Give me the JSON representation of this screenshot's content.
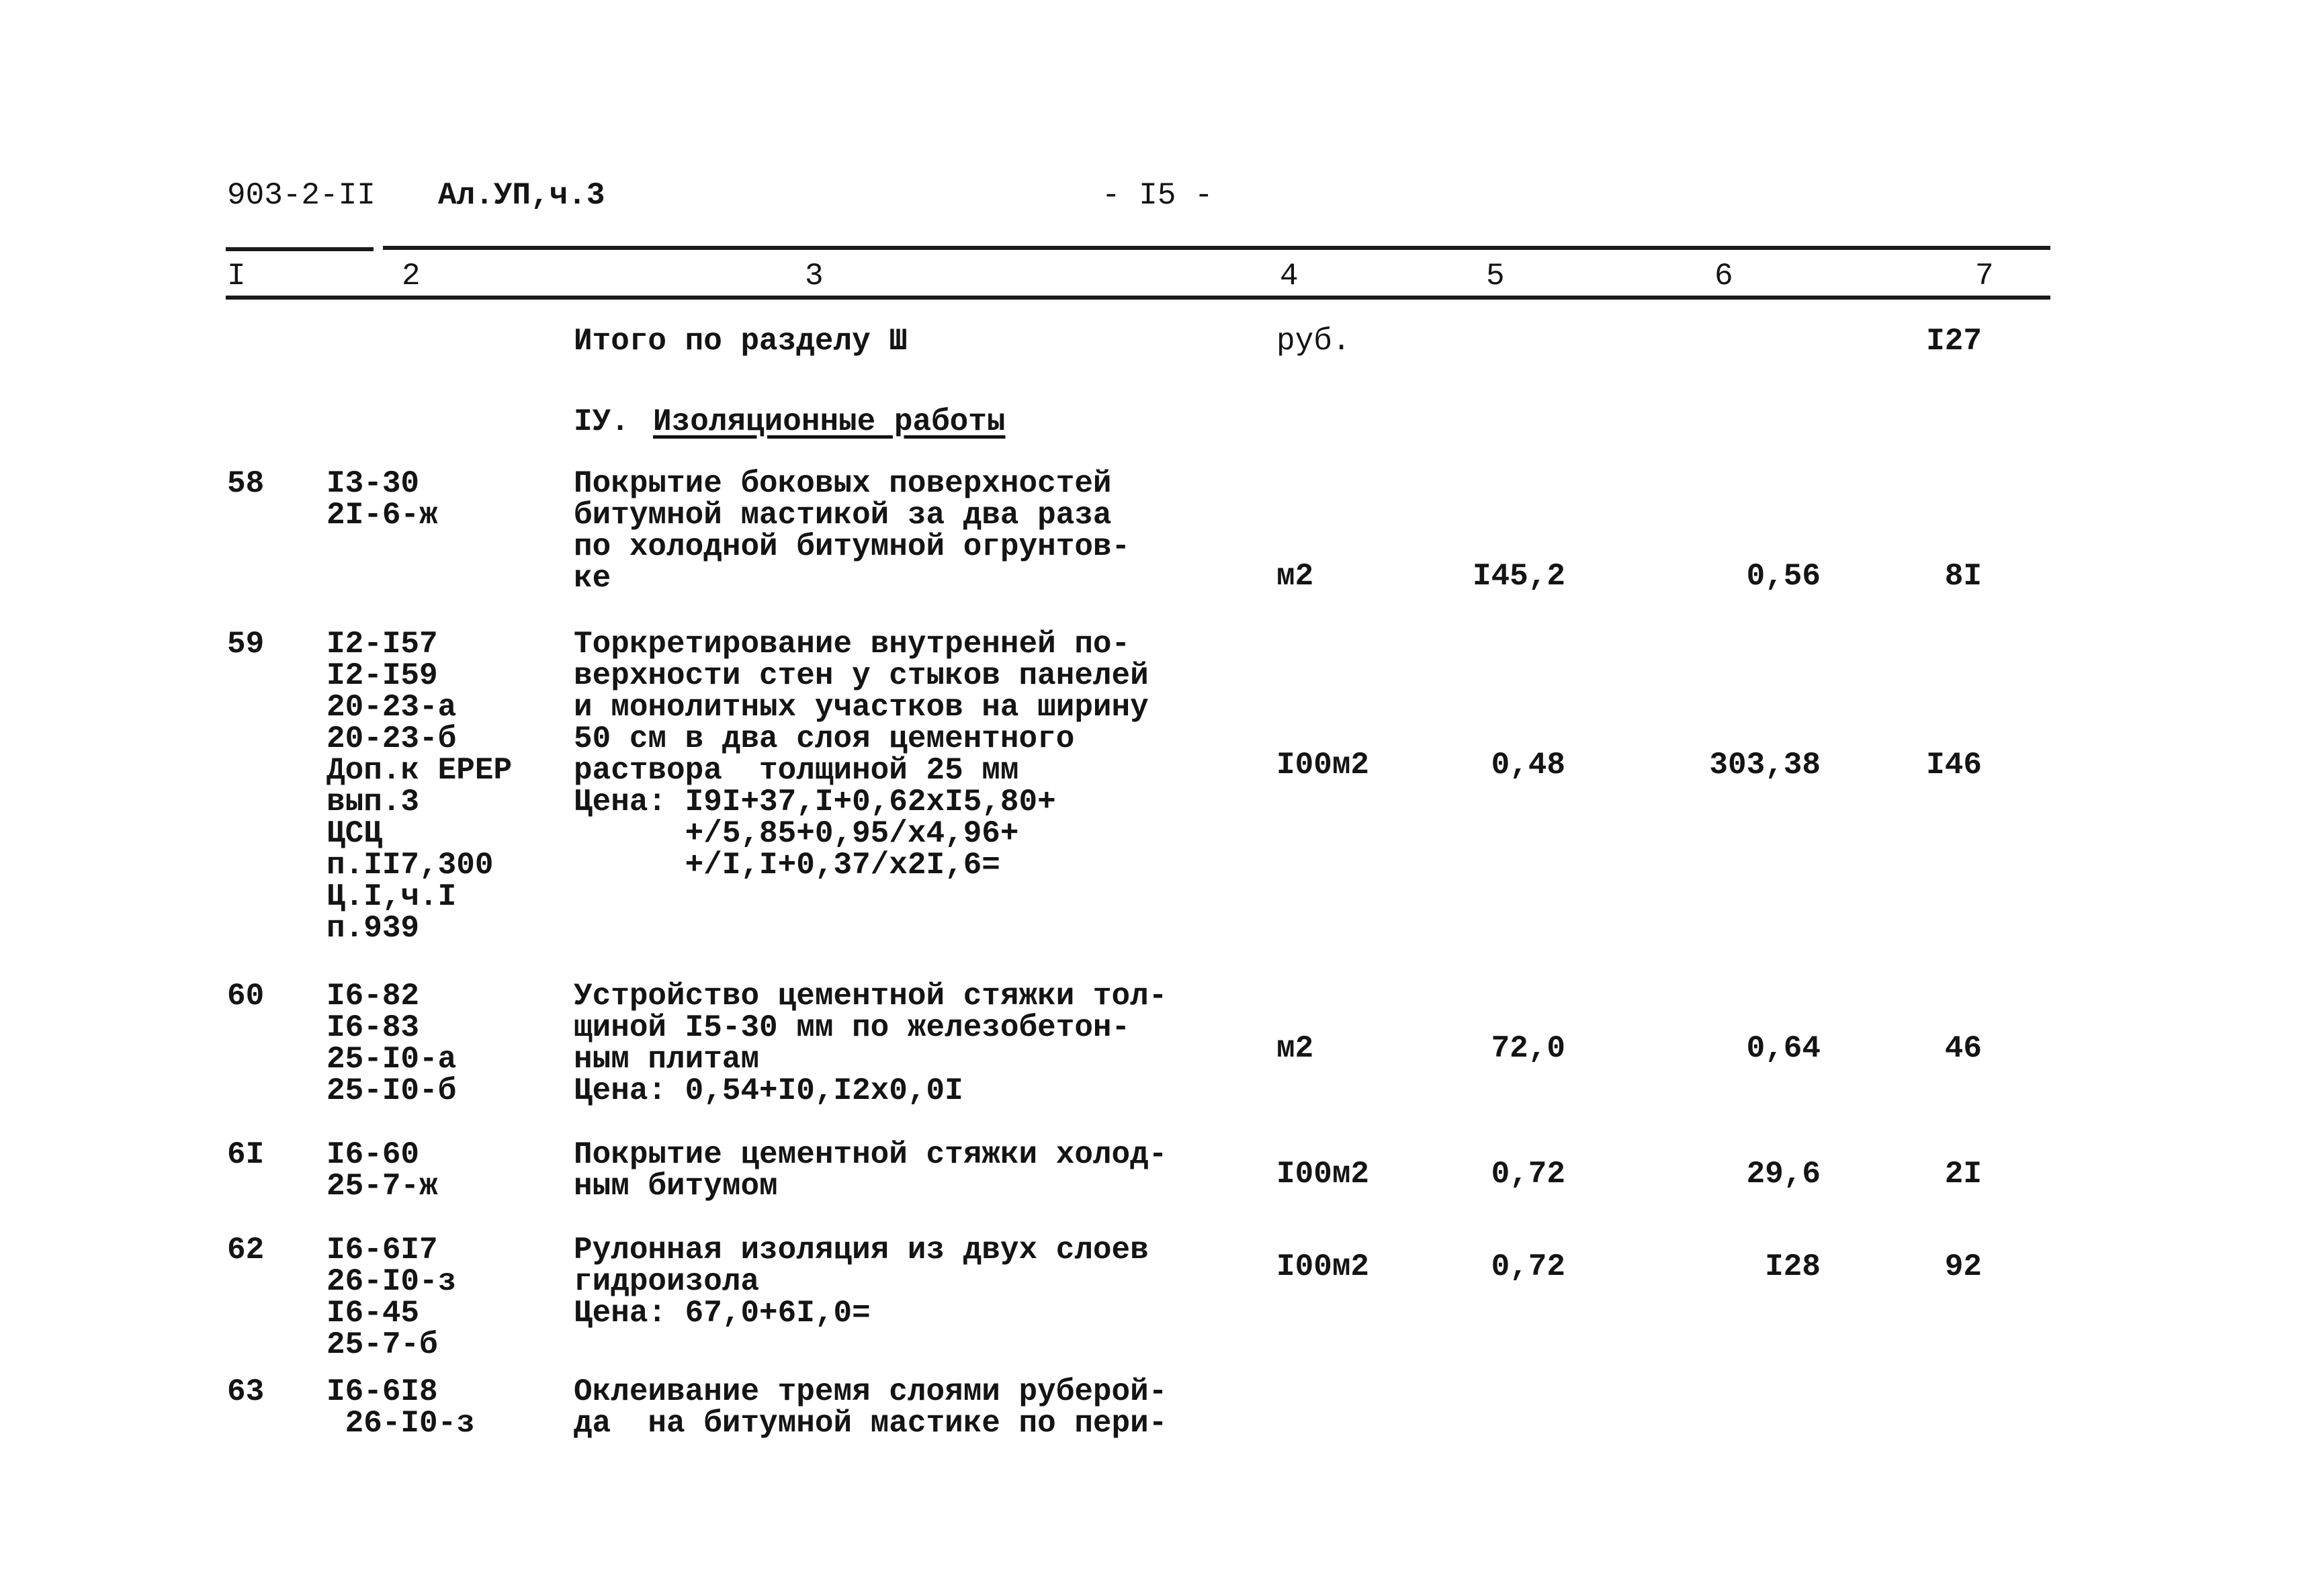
{
  "header": {
    "doc_code": "903-2-II",
    "album": "Ал.УП,ч.3",
    "page": "- I5 -"
  },
  "columns": [
    "I",
    "2",
    "3",
    "4",
    "5",
    "6",
    "7"
  ],
  "total_row": {
    "text": "Итого по разделу Ш",
    "unit": "руб.",
    "total": "I27"
  },
  "section": {
    "number": "IУ.",
    "title": "Изоляционные работы"
  },
  "rows": [
    {
      "no": "58",
      "codes": "I3-30\n2I-6-ж",
      "text": "Покрытие боковых поверхностей\nбитумной мастикой за два раза\nпо холодной битумной огрунтов-\nке",
      "unit": "м2",
      "qty": "I45,2",
      "price": "0,56",
      "total": "8I"
    },
    {
      "no": "59",
      "codes": "I2-I57\nI2-I59\n20-23-а\n20-23-б\nДоп.к ЕРЕР\nвып.3\nЦСЦ\nп.II7,300\nЦ.I,ч.I\nп.939",
      "text": "Торкретирование внутренней по-\nверхности стен у стыков панелей\nи монолитных участков на ширину\n50 см в два слоя цементного\nраствора  толщиной 25 мм\nЦена: I9I+37,I+0,62xI5,80+\n      +/5,85+0,95/x4,96+\n      +/I,I+0,37/x2I,6=",
      "unit": "I00м2",
      "qty": "0,48",
      "price": "303,38",
      "total": "I46"
    },
    {
      "no": "60",
      "codes": "I6-82\nI6-83\n25-I0-а\n25-I0-б",
      "text": "Устройство цементной стяжки тол-\nщиной I5-30 мм по железобетон-\nным плитам\nЦена: 0,54+I0,I2x0,0I",
      "unit": "м2",
      "qty": "72,0",
      "price": "0,64",
      "total": "46"
    },
    {
      "no": "6I",
      "codes": "I6-60\n25-7-ж",
      "text": "Покрытие цементной стяжки холод-\nным битумом",
      "unit": "I00м2",
      "qty": "0,72",
      "price": "29,6",
      "total": "2I"
    },
    {
      "no": "62",
      "codes": "I6-6I7\n26-I0-з\nI6-45\n25-7-б",
      "text": "Рулонная изоляция из двух слоев\nгидроизола\nЦена: 67,0+6I,0=",
      "unit": "I00м2",
      "qty": "0,72",
      "price": "I28",
      "total": "92"
    },
    {
      "no": "63",
      "codes": "I6-6I8\n 26-I0-з",
      "text": "Оклеивание тремя слоями руберой-\nда  на битумной мастике по пери-",
      "unit": "",
      "qty": "",
      "price": "",
      "total": ""
    }
  ]
}
